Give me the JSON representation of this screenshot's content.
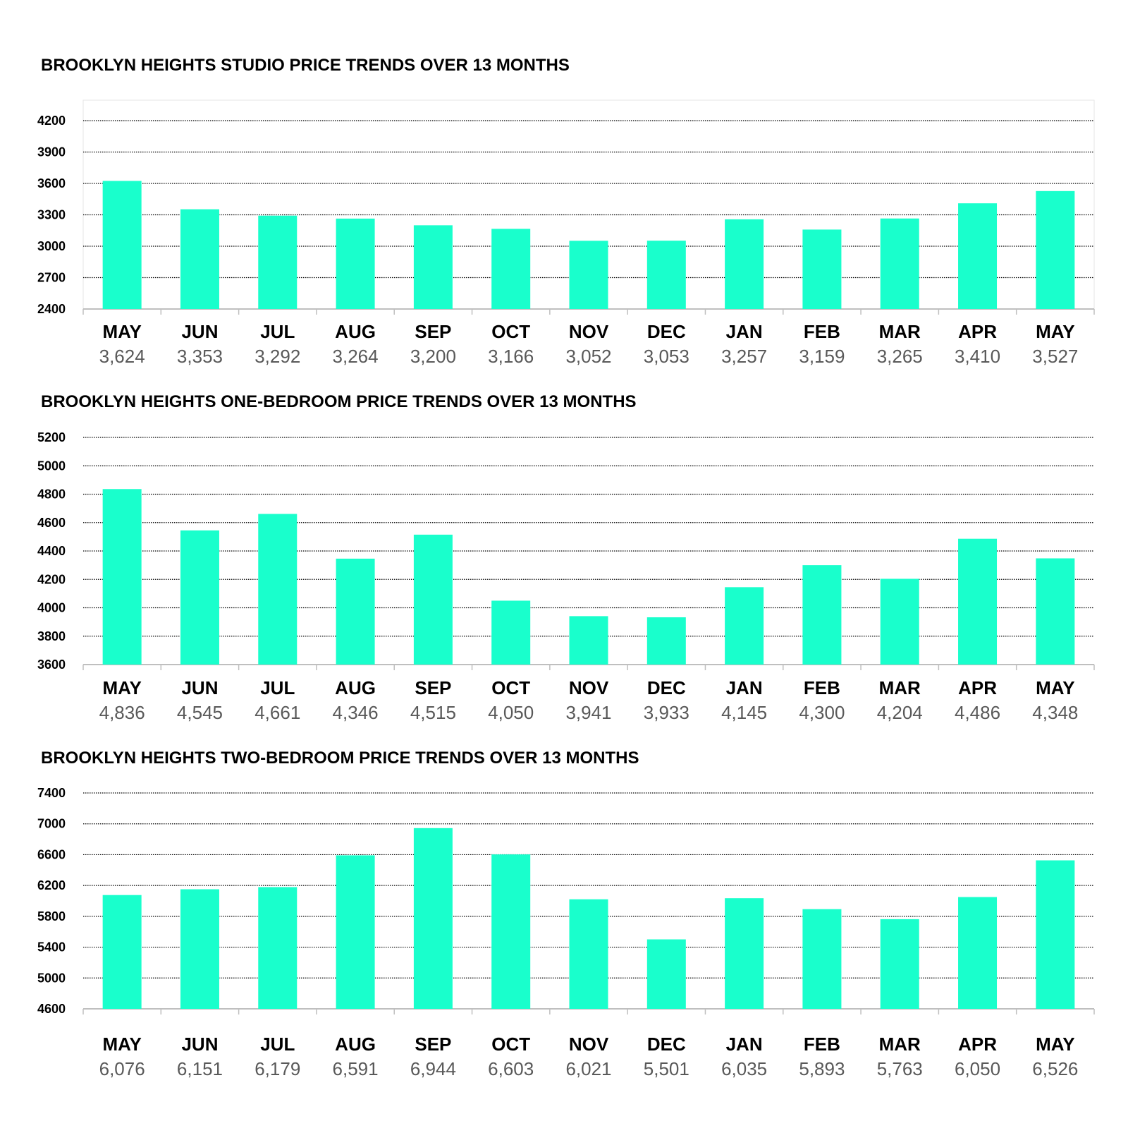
{
  "bar_color": "#19FFCC",
  "grid_color": "#000000",
  "axis_color": "#bfbfbf",
  "value_text_color": "#595959",
  "chart_data": [
    {
      "type": "bar",
      "title": "BROOKLYN HEIGHTS STUDIO PRICE TRENDS OVER 13 MONTHS",
      "categories": [
        "MAY",
        "JUN",
        "JUL",
        "AUG",
        "SEP",
        "OCT",
        "NOV",
        "DEC",
        "JAN",
        "FEB",
        "MAR",
        "APR",
        "MAY"
      ],
      "values": [
        3624,
        3353,
        3292,
        3264,
        3200,
        3166,
        3052,
        3053,
        3257,
        3159,
        3265,
        3410,
        3527
      ],
      "value_labels": [
        "3,624",
        "3,353",
        "3,292",
        "3,264",
        "3,200",
        "3,166",
        "3,052",
        "3,053",
        "3,257",
        "3,159",
        "3,265",
        "3,410",
        "3,527"
      ],
      "ylim": [
        2400,
        4200
      ],
      "yticks": [
        2400,
        2700,
        3000,
        3300,
        3600,
        3900,
        4200
      ],
      "grid": true,
      "xlabel": "",
      "ylabel": ""
    },
    {
      "type": "bar",
      "title": "BROOKLYN HEIGHTS ONE-BEDROOM PRICE TRENDS OVER 13 MONTHS",
      "categories": [
        "MAY",
        "JUN",
        "JUL",
        "AUG",
        "SEP",
        "OCT",
        "NOV",
        "DEC",
        "JAN",
        "FEB",
        "MAR",
        "APR",
        "MAY"
      ],
      "values": [
        4836,
        4545,
        4661,
        4346,
        4515,
        4050,
        3941,
        3933,
        4145,
        4300,
        4204,
        4486,
        4348
      ],
      "value_labels": [
        "4,836",
        "4,545",
        "4,661",
        "4,346",
        "4,515",
        "4,050",
        "3,941",
        "3,933",
        "4,145",
        "4,300",
        "4,204",
        "4,486",
        "4,348"
      ],
      "ylim": [
        3600,
        5200
      ],
      "yticks": [
        3600,
        3800,
        4000,
        4200,
        4400,
        4600,
        4800,
        5000,
        5200
      ],
      "grid": true,
      "xlabel": "",
      "ylabel": ""
    },
    {
      "type": "bar",
      "title": "BROOKLYN HEIGHTS TWO-BEDROOM PRICE TRENDS OVER 13 MONTHS",
      "categories": [
        "MAY",
        "JUN",
        "JUL",
        "AUG",
        "SEP",
        "OCT",
        "NOV",
        "DEC",
        "JAN",
        "FEB",
        "MAR",
        "APR",
        "MAY"
      ],
      "values": [
        6076,
        6151,
        6179,
        6591,
        6944,
        6603,
        6021,
        5501,
        6035,
        5893,
        5763,
        6050,
        6526
      ],
      "value_labels": [
        "6,076",
        "6,151",
        "6,179",
        "6,591",
        "6,944",
        "6,603",
        "6,021",
        "5,501",
        "6,035",
        "5,893",
        "5,763",
        "6,050",
        "6,526"
      ],
      "ylim": [
        4600,
        7400
      ],
      "yticks": [
        4600,
        5000,
        5400,
        5800,
        6200,
        6600,
        7000,
        7400
      ],
      "grid": true,
      "xlabel": "",
      "ylabel": ""
    }
  ]
}
